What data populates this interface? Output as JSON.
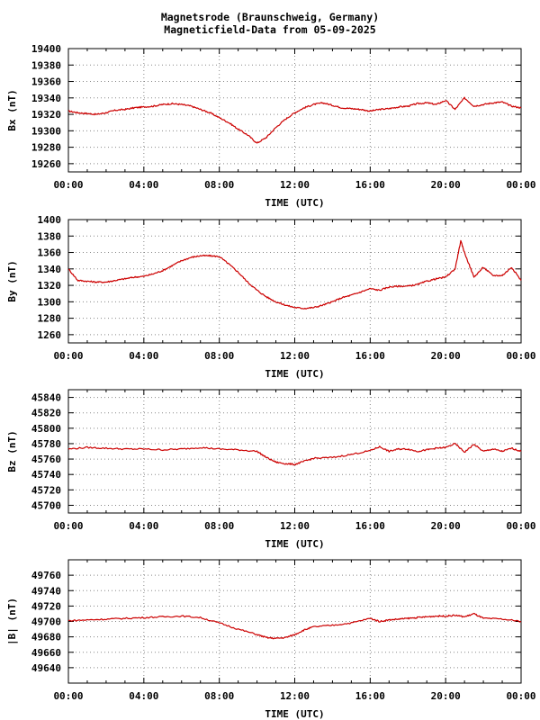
{
  "header": {
    "title": "Magnetsrode (Braunschweig, Germany)",
    "subtitle": "Magneticfield-Data from 05-09-2025"
  },
  "colors": {
    "series": "#cc0000",
    "grid": "#888888",
    "axis": "#000000"
  },
  "chart_data": [
    {
      "type": "line",
      "ylabel": "Bx (nT)",
      "xlabel": "TIME (UTC)",
      "x_ticks": [
        "00:00",
        "04:00",
        "08:00",
        "12:00",
        "16:00",
        "20:00",
        "00:00"
      ],
      "xlim_hours": [
        0,
        24
      ],
      "ylim": [
        19250,
        19400
      ],
      "y_ticks": [
        19260,
        19280,
        19300,
        19320,
        19340,
        19360,
        19380,
        19400
      ],
      "grid": true,
      "series": [
        {
          "x": [
            0,
            0.5,
            1,
            1.5,
            2,
            2.5,
            3,
            3.5,
            4,
            4.5,
            5,
            5.5,
            6,
            6.5,
            7,
            7.5,
            8,
            8.5,
            9,
            9.5,
            10,
            10.5,
            11,
            11.5,
            12,
            12.5,
            13,
            13.5,
            14,
            14.5,
            15,
            15.5,
            16,
            16.5,
            17,
            17.5,
            18,
            18.5,
            19,
            19.5,
            20,
            20.5,
            21,
            21.5,
            22,
            22.5,
            23,
            23.5,
            24
          ],
          "y": [
            19324,
            19322,
            19321,
            19320,
            19322,
            19325,
            19326,
            19328,
            19329,
            19330,
            19332,
            19333,
            19332,
            19330,
            19326,
            19322,
            19316,
            19310,
            19302,
            19295,
            19285,
            19292,
            19304,
            19314,
            19322,
            19328,
            19332,
            19334,
            19331,
            19328,
            19327,
            19326,
            19324,
            19326,
            19327,
            19329,
            19330,
            19333,
            19334,
            19332,
            19337,
            19326,
            19340,
            19330,
            19332,
            19334,
            19335,
            19330,
            19328
          ]
        }
      ]
    },
    {
      "type": "line",
      "ylabel": "By (nT)",
      "xlabel": "TIME (UTC)",
      "x_ticks": [
        "00:00",
        "04:00",
        "08:00",
        "12:00",
        "16:00",
        "20:00",
        "00:00"
      ],
      "xlim_hours": [
        0,
        24
      ],
      "ylim": [
        1250,
        1400
      ],
      "y_ticks": [
        1260,
        1280,
        1300,
        1320,
        1340,
        1360,
        1380,
        1400
      ],
      "grid": true,
      "series": [
        {
          "x": [
            0,
            0.5,
            1,
            1.5,
            2,
            2.5,
            3,
            3.5,
            4,
            4.5,
            5,
            5.5,
            6,
            6.5,
            7,
            7.5,
            8,
            8.5,
            9,
            9.5,
            10,
            10.5,
            11,
            11.5,
            12,
            12.5,
            13,
            13.5,
            14,
            14.5,
            15,
            15.5,
            16,
            16.5,
            17,
            17.5,
            18,
            18.5,
            19,
            19.5,
            20,
            20.5,
            20.8,
            21,
            21.5,
            22,
            22.5,
            23,
            23.5,
            24
          ],
          "y": [
            1340,
            1326,
            1325,
            1324,
            1324,
            1326,
            1328,
            1330,
            1331,
            1334,
            1338,
            1344,
            1350,
            1354,
            1356,
            1356,
            1355,
            1346,
            1336,
            1324,
            1314,
            1306,
            1300,
            1296,
            1293,
            1292,
            1293,
            1296,
            1300,
            1305,
            1308,
            1312,
            1316,
            1314,
            1318,
            1319,
            1319,
            1321,
            1325,
            1328,
            1330,
            1340,
            1374,
            1360,
            1330,
            1342,
            1332,
            1332,
            1342,
            1326
          ]
        }
      ]
    },
    {
      "type": "line",
      "ylabel": "Bz (nT)",
      "xlabel": "TIME (UTC)",
      "x_ticks": [
        "00:00",
        "04:00",
        "08:00",
        "12:00",
        "16:00",
        "20:00",
        "00:00"
      ],
      "xlim_hours": [
        0,
        24
      ],
      "ylim": [
        45690,
        45850
      ],
      "y_ticks": [
        45700,
        45720,
        45740,
        45760,
        45780,
        45800,
        45820,
        45840
      ],
      "grid": true,
      "series": [
        {
          "x": [
            0,
            1,
            2,
            3,
            4,
            5,
            6,
            7,
            8,
            9,
            10,
            10.5,
            11,
            11.5,
            12,
            12.5,
            13,
            14,
            15,
            16,
            16.5,
            17,
            17.5,
            18,
            18.5,
            19,
            19.5,
            20,
            20.5,
            21,
            21.5,
            22,
            22.5,
            23,
            23.5,
            24
          ],
          "y": [
            45773,
            45775,
            45774,
            45773,
            45773,
            45772,
            45773,
            45775,
            45773,
            45772,
            45770,
            45762,
            45756,
            45754,
            45753,
            45757,
            45761,
            45762,
            45766,
            45771,
            45776,
            45770,
            45773,
            45773,
            45770,
            45772,
            45774,
            45775,
            45780,
            45769,
            45779,
            45770,
            45773,
            45770,
            45774,
            45770
          ]
        }
      ]
    },
    {
      "type": "line",
      "ylabel": "|B| (nT)",
      "xlabel": "TIME (UTC)",
      "x_ticks": [
        "00:00",
        "04:00",
        "08:00",
        "12:00",
        "16:00",
        "20:00",
        "00:00"
      ],
      "xlim_hours": [
        0,
        24
      ],
      "ylim": [
        49620,
        49780
      ],
      "y_ticks": [
        49640,
        49660,
        49680,
        49700,
        49720,
        49740,
        49760
      ],
      "grid": true,
      "series": [
        {
          "x": [
            0,
            1,
            2,
            3,
            4,
            5,
            6,
            7,
            8,
            9,
            10,
            10.5,
            11,
            11.5,
            12,
            12.5,
            13,
            14,
            15,
            16,
            16.5,
            17,
            17.5,
            18,
            18.5,
            19,
            19.5,
            20,
            20.5,
            21,
            21.5,
            22,
            23,
            24
          ],
          "y": [
            49701,
            49702,
            49703,
            49704,
            49705,
            49706,
            49707,
            49705,
            49698,
            49690,
            49683,
            49679,
            49678,
            49679,
            49683,
            49689,
            49693,
            49695,
            49698,
            49704,
            49700,
            49702,
            49703,
            49704,
            49705,
            49706,
            49707,
            49707,
            49708,
            49706,
            49710,
            49704,
            49703,
            49700
          ]
        }
      ]
    }
  ]
}
